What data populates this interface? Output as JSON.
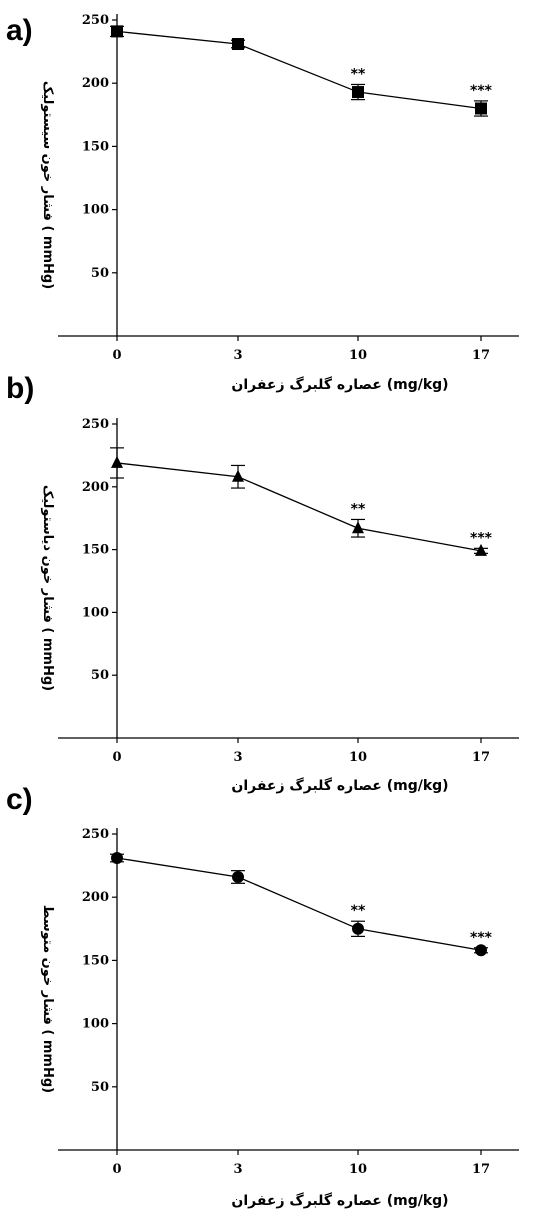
{
  "chart_data": [
    {
      "type": "line",
      "panel": "a)",
      "marker": "square",
      "x": [
        "0",
        "3",
        "10",
        "17"
      ],
      "y": [
        241,
        231,
        193,
        180
      ],
      "error": [
        4,
        3,
        6,
        6
      ],
      "significance": [
        "",
        "",
        "**",
        "***"
      ],
      "ylabel": "فشار خون سیستولیک ( mmHg)",
      "xlabel": "عصاره گلبرگ زعفران (mg/kg)",
      "yticks": [
        "50",
        "100",
        "150",
        "200",
        "250"
      ],
      "ylim": [
        0,
        250
      ],
      "grid": false,
      "legend": "none"
    },
    {
      "type": "line",
      "panel": "b)",
      "marker": "triangle",
      "x": [
        "0",
        "3",
        "10",
        "17"
      ],
      "y": [
        219,
        208,
        167,
        149
      ],
      "error": [
        12,
        9,
        7,
        2
      ],
      "significance": [
        "",
        "",
        "**",
        "***"
      ],
      "ylabel": "فشار خون دیاستولیک ( mmHg)",
      "xlabel": "عصاره گلبرگ زعفران (mg/kg)",
      "yticks": [
        "50",
        "100",
        "150",
        "200",
        "250"
      ],
      "ylim": [
        0,
        250
      ],
      "grid": false,
      "legend": "none"
    },
    {
      "type": "line",
      "panel": "c)",
      "marker": "circle",
      "x": [
        "0",
        "3",
        "10",
        "17"
      ],
      "y": [
        231,
        216,
        175,
        158
      ],
      "error": [
        3,
        5,
        6,
        2
      ],
      "significance": [
        "",
        "",
        "**",
        "***"
      ],
      "ylabel": "فشار خون متوسط ( mmHg)",
      "xlabel": "عصاره گلبرگ زعفران (mg/kg)",
      "yticks": [
        "50",
        "100",
        "150",
        "200",
        "250"
      ],
      "ylim": [
        0,
        250
      ],
      "grid": false,
      "legend": "none"
    }
  ]
}
